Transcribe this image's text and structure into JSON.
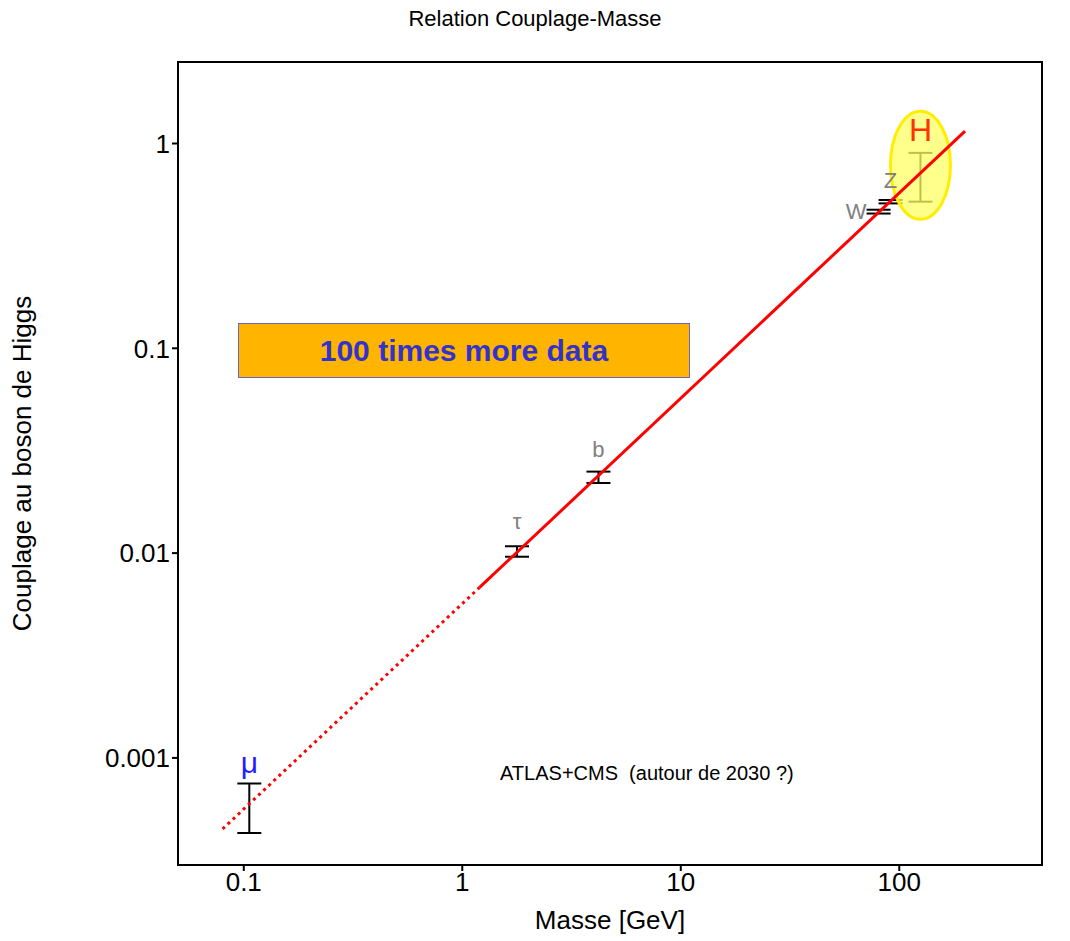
{
  "chart_data": {
    "type": "scatter",
    "title": "Relation Couplage-Masse",
    "x_label": "Masse [GeV]",
    "y_label": "Couplage au boson de Higgs",
    "log": true,
    "grid": false,
    "tick_labels": true,
    "xlim": [
      0.05,
      450
    ],
    "ylim": [
      0.0003,
      2.5
    ],
    "xticks": [
      0.1,
      1,
      10,
      100
    ],
    "yticks": [
      0.001,
      0.01,
      0.1,
      1
    ],
    "series": [
      {
        "type": "line",
        "x": [
          0.08,
          1.2
        ],
        "values": [
          0.00045,
          0.0068
        ],
        "color": "#ff0000",
        "line_style": "dotted"
      },
      {
        "type": "line",
        "x": [
          1.2,
          200
        ],
        "values": [
          0.0068,
          1.15
        ],
        "color": "#ff0000",
        "line_style": "solid"
      },
      {
        "type": "scatter",
        "marker": "none",
        "labels": [
          "μ",
          "τ",
          "b",
          "W",
          "Z",
          "H"
        ],
        "x": [
          0.106,
          1.78,
          4.2,
          80.4,
          91.2,
          125
        ],
        "values": [
          0.0006,
          0.0102,
          0.0235,
          0.465,
          0.52,
          0.7
        ],
        "y_low": [
          0.00043,
          0.0096,
          0.022,
          0.455,
          0.51,
          0.52
        ],
        "y_high": [
          0.00075,
          0.0108,
          0.025,
          0.475,
          0.53,
          0.9
        ],
        "colors": [
          "#1f1fff",
          "#808080",
          "#808080",
          "#808080",
          "#808080",
          "#ff3300"
        ]
      }
    ],
    "annotations": [
      "100 times more data",
      "ATLAS+CMS  (autour de 2030 ?)"
    ]
  }
}
